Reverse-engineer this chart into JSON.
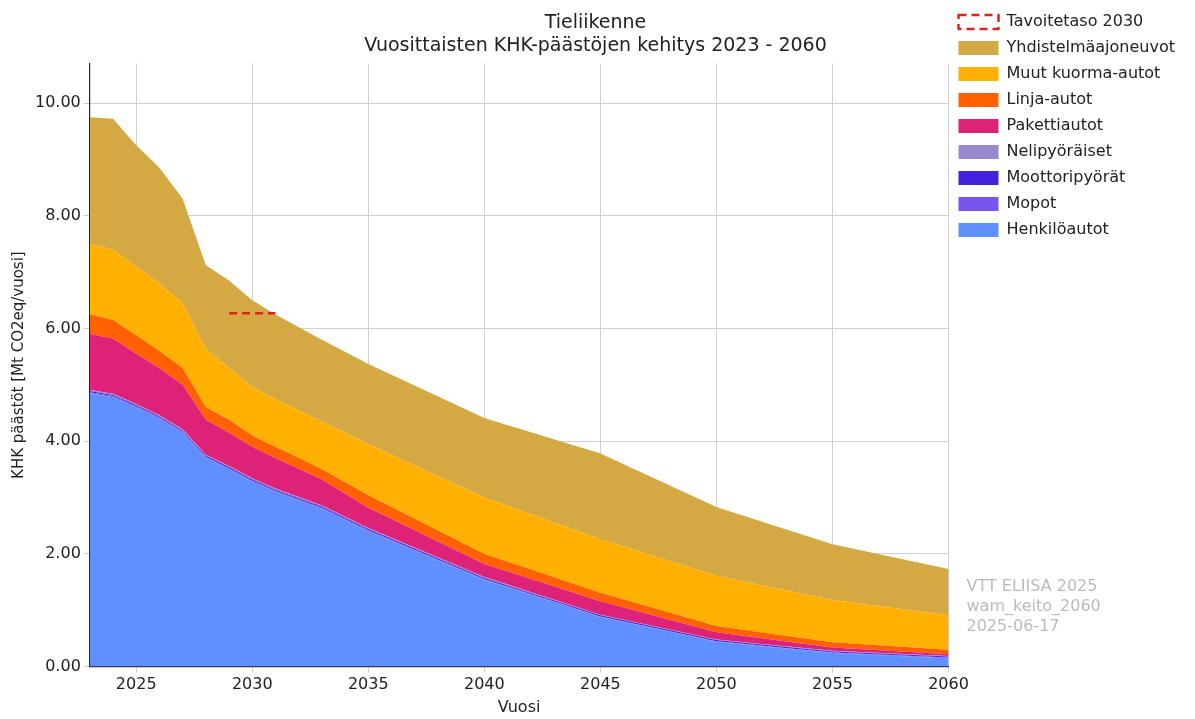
{
  "chart_data": {
    "type": "area",
    "title": "Tieliikenne",
    "subtitle": "Vuosittaisten KHK-päästöjen kehitys 2023 - 2060",
    "xlabel": "Vuosi",
    "ylabel": "KHK päästöt [Mt CO2eq/vuosi]",
    "x": [
      2023,
      2024,
      2025,
      2026,
      2027,
      2028,
      2029,
      2030,
      2031,
      2033,
      2035,
      2040,
      2045,
      2050,
      2055,
      2060
    ],
    "stacked": true,
    "grid": true,
    "legend": "right",
    "marker": "none",
    "xlim": [
      2023,
      2060
    ],
    "xticks": [
      2025,
      2030,
      2035,
      2040,
      2045,
      2050,
      2055,
      2060
    ],
    "ylim": [
      0,
      10.7
    ],
    "yticks": [
      {
        "value": 0,
        "label": "0.00"
      },
      {
        "value": 2,
        "label": "2.00"
      },
      {
        "value": 4,
        "label": "4.00"
      },
      {
        "value": 6,
        "label": "6.00"
      },
      {
        "value": 8,
        "label": "8.00"
      },
      {
        "value": 10,
        "label": "10.00"
      }
    ],
    "series": [
      {
        "name": "Tavoitetaso 2030",
        "type": "line",
        "line_style": "dashed",
        "color": "#dd2222",
        "x": [
          2029,
          2031
        ],
        "values": [
          6.27,
          6.27
        ]
      },
      {
        "name": "Henkilöautot",
        "color": "#6090ff",
        "values": [
          4.85,
          4.78,
          4.6,
          4.4,
          4.15,
          3.7,
          3.5,
          3.28,
          3.1,
          2.8,
          2.4,
          1.54,
          0.88,
          0.44,
          0.24,
          0.15
        ]
      },
      {
        "name": "Mopot",
        "color": "#7755ee",
        "values": [
          0.02,
          0.02,
          0.02,
          0.02,
          0.02,
          0.02,
          0.02,
          0.02,
          0.02,
          0.02,
          0.02,
          0.01,
          0.01,
          0.01,
          0.01,
          0.01
        ]
      },
      {
        "name": "Moottoripyörät",
        "color": "#4422dd",
        "values": [
          0.02,
          0.02,
          0.02,
          0.02,
          0.02,
          0.02,
          0.02,
          0.02,
          0.02,
          0.02,
          0.02,
          0.02,
          0.02,
          0.02,
          0.02,
          0.02
        ]
      },
      {
        "name": "Nelipyöräiset",
        "color": "#9988cc",
        "values": [
          0.02,
          0.02,
          0.02,
          0.02,
          0.02,
          0.02,
          0.02,
          0.02,
          0.02,
          0.02,
          0.02,
          0.02,
          0.01,
          0.01,
          0.01,
          0.01
        ]
      },
      {
        "name": "Pakettiautot",
        "color": "#dd2277",
        "values": [
          0.99,
          0.98,
          0.89,
          0.84,
          0.79,
          0.62,
          0.59,
          0.56,
          0.54,
          0.46,
          0.36,
          0.23,
          0.24,
          0.13,
          0.06,
          0.03
        ]
      },
      {
        "name": "Linja-autot",
        "color": "#ff6000",
        "values": [
          0.35,
          0.33,
          0.33,
          0.3,
          0.3,
          0.22,
          0.23,
          0.2,
          0.2,
          0.18,
          0.22,
          0.18,
          0.15,
          0.11,
          0.09,
          0.08
        ]
      },
      {
        "name": "Muut kuorma-autot",
        "color": "#ffb000",
        "values": [
          1.25,
          1.25,
          1.22,
          1.2,
          1.15,
          1.04,
          0.92,
          0.86,
          0.85,
          0.85,
          0.91,
          1.0,
          0.95,
          0.89,
          0.75,
          0.61
        ]
      },
      {
        "name": "Yhdistelmäajoneuvot",
        "color": "#d4a843",
        "values": [
          2.25,
          2.32,
          2.15,
          2.05,
          1.85,
          1.48,
          1.55,
          1.54,
          1.5,
          1.45,
          1.42,
          1.41,
          1.52,
          1.22,
          0.99,
          0.82
        ]
      }
    ],
    "annotations": [
      "VTT ELIISA 2025",
      "wam_keito_2060",
      "2025-06-17"
    ]
  }
}
